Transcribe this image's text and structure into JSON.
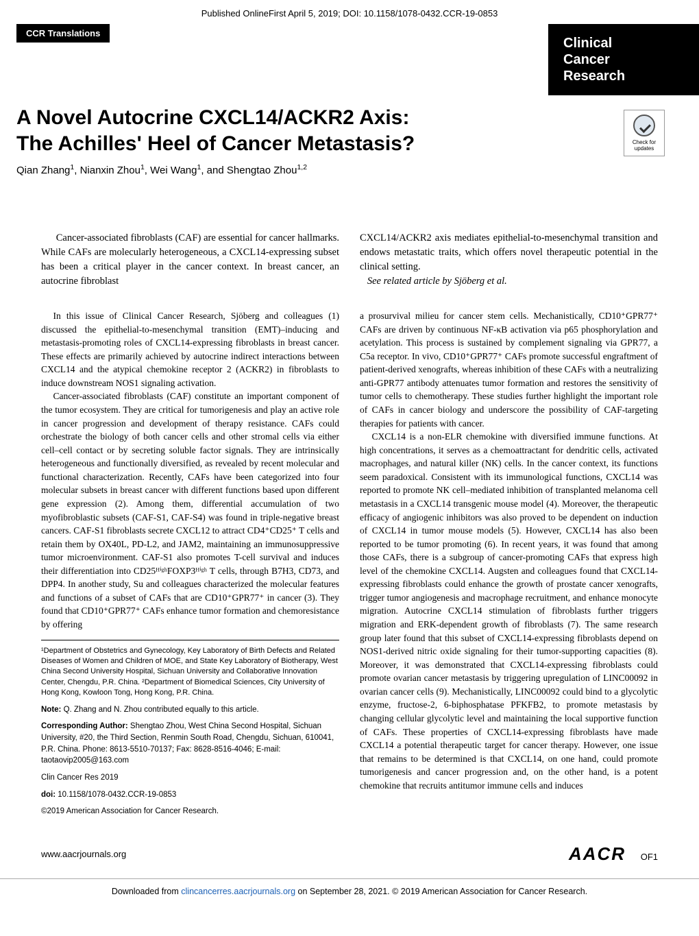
{
  "top_banner": "Published OnlineFirst April 5, 2019; DOI: 10.1158/1078-0432.CCR-19-0853",
  "section_label": "CCR Translations",
  "journal": {
    "line1": "Clinical",
    "line2": "Cancer",
    "line3": "Research"
  },
  "title": {
    "line1": "A Novel Autocrine CXCL14/ACKR2 Axis:",
    "line2": "The Achilles' Heel of Cancer Metastasis?"
  },
  "authors_html": "Qian Zhang<sup>1</sup>, Nianxin Zhou<sup>1</sup>, Wei Wang<sup>1</sup>, and Shengtao Zhou<sup>1,2</sup>",
  "check_updates_label": "Check for updates",
  "abstract": {
    "left": "Cancer-associated fibroblasts (CAF) are essential for cancer hallmarks. While CAFs are molecularly heterogeneous, a CXCL14-expressing subset has been a critical player in the cancer context. In breast cancer, an autocrine fibroblast",
    "right": "CXCL14/ACKR2 axis mediates epithelial-to-mesenchymal transition and endows metastatic traits, which offers novel therapeutic potential in the clinical setting.",
    "see_related": "See related article by Sjöberg et al."
  },
  "body": {
    "left_p1": "In this issue of Clinical Cancer Research, Sjöberg and colleagues (1) discussed the epithelial-to-mesenchymal transition (EMT)–inducing and metastasis-promoting roles of CXCL14-expressing fibroblasts in breast cancer. These effects are primarily achieved by autocrine indirect interactions between CXCL14 and the atypical chemokine receptor 2 (ACKR2) in fibroblasts to induce downstream NOS1 signaling activation.",
    "left_p2": "Cancer-associated fibroblasts (CAF) constitute an important component of the tumor ecosystem. They are critical for tumorigenesis and play an active role in cancer progression and development of therapy resistance. CAFs could orchestrate the biology of both cancer cells and other stromal cells via either cell–cell contact or by secreting soluble factor signals. They are intrinsically heterogeneous and functionally diversified, as revealed by recent molecular and functional characterization. Recently, CAFs have been categorized into four molecular subsets in breast cancer with different functions based upon different gene expression (2). Among them, differential accumulation of two myofibroblastic subsets (CAF-S1, CAF-S4) was found in triple-negative breast cancers. CAF-S1 fibroblasts secrete CXCL12 to attract CD4⁺CD25⁺ T cells and retain them by OX40L, PD-L2, and JAM2, maintaining an immunosuppressive tumor microenvironment. CAF-S1 also promotes T-cell survival and induces their differentiation into CD25ᴴⁱᵍʰFOXP3ᴴⁱᵍʰ T cells, through B7H3, CD73, and DPP4. In another study, Su and colleagues characterized the molecular features and functions of a subset of CAFs that are CD10⁺GPR77⁺ in cancer (3). They found that CD10⁺GPR77⁺ CAFs enhance tumor formation and chemoresistance by offering",
    "right_p1": "a prosurvival milieu for cancer stem cells. Mechanistically, CD10⁺GPR77⁺ CAFs are driven by continuous NF-κB activation via p65 phosphorylation and acetylation. This process is sustained by complement signaling via GPR77, a C5a receptor. In vivo, CD10⁺GPR77⁺ CAFs promote successful engraftment of patient-derived xenografts, whereas inhibition of these CAFs with a neutralizing anti-GPR77 antibody attenuates tumor formation and restores the sensitivity of tumor cells to chemotherapy. These studies further highlight the important role of CAFs in cancer biology and underscore the possibility of CAF-targeting therapies for patients with cancer.",
    "right_p2": "CXCL14 is a non-ELR chemokine with diversified immune functions. At high concentrations, it serves as a chemoattractant for dendritic cells, activated macrophages, and natural killer (NK) cells. In the cancer context, its functions seem paradoxical. Consistent with its immunological functions, CXCL14 was reported to promote NK cell–mediated inhibition of transplanted melanoma cell metastasis in a CXCL14 transgenic mouse model (4). Moreover, the therapeutic efficacy of angiogenic inhibitors was also proved to be dependent on induction of CXCL14 in tumor mouse models (5). However, CXCL14 has also been reported to be tumor promoting (6). In recent years, it was found that among those CAFs, there is a subgroup of cancer-promoting CAFs that express high level of the chemokine CXCL14. Augsten and colleagues found that CXCL14-expressing fibroblasts could enhance the growth of prostate cancer xenografts, trigger tumor angiogenesis and macrophage recruitment, and enhance monocyte migration. Autocrine CXCL14 stimulation of fibroblasts further triggers migration and ERK-dependent growth of fibroblasts (7). The same research group later found that this subset of CXCL14-expressing fibroblasts depend on NOS1-derived nitric oxide signaling for their tumor-supporting capacities (8). Moreover, it was demonstrated that CXCL14-expressing fibroblasts could promote ovarian cancer metastasis by triggering upregulation of LINC00092 in ovarian cancer cells (9). Mechanistically, LINC00092 could bind to a glycolytic enzyme, fructose-2, 6-biphosphatase PFKFB2, to promote metastasis by changing cellular glycolytic level and maintaining the local supportive function of CAFs. These properties of CXCL14-expressing fibroblasts have made CXCL14 a potential therapeutic target for cancer therapy. However, one issue that remains to be determined is that CXCL14, on one hand, could promote tumorigenesis and cancer progression and, on the other hand, is a potent chemokine that recruits antitumor immune cells and induces"
  },
  "affiliations": "¹Department of Obstetrics and Gynecology, Key Laboratory of Birth Defects and Related Diseases of Women and Children of MOE, and State Key Laboratory of Biotherapy, West China Second University Hospital, Sichuan University and Collaborative Innovation Center, Chengdu, P.R. China. ²Department of Biomedical Sciences, City University of Hong Kong, Kowloon Tong, Hong Kong, P.R. China.",
  "note": {
    "label": "Note:",
    "text": " Q. Zhang and N. Zhou contributed equally to this article."
  },
  "corresponding": {
    "label": "Corresponding Author:",
    "text": " Shengtao Zhou, West China Second Hospital, Sichuan University, #20, the Third Section, Renmin South Road, Chengdu, Sichuan, 610041, P.R. China. Phone: 8613-5510-70137; Fax: 8628-8516-4046; E-mail: taotaovip2005@163.com"
  },
  "journal_ref": "Clin Cancer Res 2019",
  "doi": {
    "label": "doi:",
    "text": " 10.1158/1078-0432.CCR-19-0853"
  },
  "copyright": "©2019 American Association for Cancer Research.",
  "footer": {
    "url": "www.aacrjournals.org",
    "logo": "AACR",
    "pagenum": "OF1"
  },
  "download": {
    "prefix": "Downloaded from ",
    "link_text": "clincancerres.aacrjournals.org",
    "suffix": " on September 28, 2021. © 2019 American Association for Cancer Research."
  },
  "colors": {
    "text": "#000000",
    "background": "#ffffff",
    "tab_bg": "#000000",
    "tab_fg": "#ffffff",
    "link": "#1a5fb4"
  },
  "typography": {
    "title_fontsize": 30,
    "body_fontsize": 13.5,
    "abstract_fontsize": 14.5,
    "affil_fontsize": 11,
    "journal_fontsize": 20
  }
}
